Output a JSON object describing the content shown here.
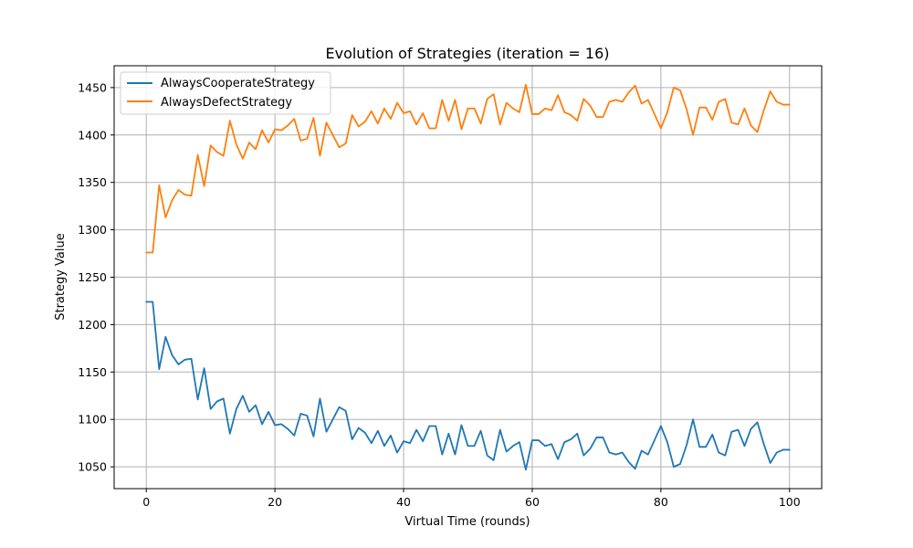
{
  "chart_data": {
    "type": "line",
    "title": "Evolution of Strategies (iteration = 16)",
    "xlabel": "Virtual Time (rounds)",
    "ylabel": "Strategy Value",
    "xlim": [
      -5,
      105
    ],
    "ylim": [
      1027,
      1473
    ],
    "xticks": [
      0,
      20,
      40,
      60,
      80,
      100
    ],
    "yticks": [
      1050,
      1100,
      1150,
      1200,
      1250,
      1300,
      1350,
      1400,
      1450
    ],
    "grid": true,
    "legend_position": "top-left",
    "x": [
      0,
      1,
      2,
      3,
      4,
      5,
      6,
      7,
      8,
      9,
      10,
      11,
      12,
      13,
      14,
      15,
      16,
      17,
      18,
      19,
      20,
      21,
      22,
      23,
      24,
      25,
      26,
      27,
      28,
      29,
      30,
      31,
      32,
      33,
      34,
      35,
      36,
      37,
      38,
      39,
      40,
      41,
      42,
      43,
      44,
      45,
      46,
      47,
      48,
      49,
      50,
      51,
      52,
      53,
      54,
      55,
      56,
      57,
      58,
      59,
      60,
      61,
      62,
      63,
      64,
      65,
      66,
      67,
      68,
      69,
      70,
      71,
      72,
      73,
      74,
      75,
      76,
      77,
      78,
      79,
      80,
      81,
      82,
      83,
      84,
      85,
      86,
      87,
      88,
      89,
      90,
      91,
      92,
      93,
      94,
      95,
      96,
      97,
      98,
      99,
      100
    ],
    "series": [
      {
        "name": "AlwaysCooperateStrategy",
        "color": "#1f77b4",
        "values": [
          1224,
          1224,
          1153,
          1187,
          1168,
          1158,
          1163,
          1164,
          1121,
          1154,
          1111,
          1119,
          1122,
          1085,
          1111,
          1125,
          1108,
          1115,
          1095,
          1108,
          1094,
          1095,
          1090,
          1083,
          1106,
          1104,
          1082,
          1122,
          1087,
          1100,
          1113,
          1109,
          1079,
          1091,
          1086,
          1075,
          1088,
          1072,
          1083,
          1065,
          1077,
          1075,
          1089,
          1077,
          1093,
          1093,
          1063,
          1085,
          1063,
          1094,
          1072,
          1072,
          1088,
          1062,
          1057,
          1089,
          1066,
          1072,
          1076,
          1047,
          1078,
          1078,
          1072,
          1074,
          1058,
          1076,
          1079,
          1085,
          1062,
          1069,
          1081,
          1081,
          1065,
          1063,
          1065,
          1055,
          1048,
          1067,
          1063,
          1078,
          1093,
          1076,
          1050,
          1053,
          1073,
          1100,
          1071,
          1071,
          1084,
          1065,
          1062,
          1087,
          1089,
          1072,
          1090,
          1097,
          1074,
          1054,
          1065,
          1068,
          1068
        ]
      },
      {
        "name": "AlwaysDefectStrategy",
        "color": "#ff7f0e",
        "values": [
          1276,
          1276,
          1347,
          1313,
          1331,
          1342,
          1337,
          1336,
          1379,
          1346,
          1389,
          1382,
          1378,
          1415,
          1390,
          1375,
          1392,
          1385,
          1405,
          1392,
          1406,
          1405,
          1410,
          1417,
          1394,
          1396,
          1418,
          1378,
          1413,
          1400,
          1387,
          1391,
          1421,
          1409,
          1414,
          1425,
          1412,
          1428,
          1417,
          1434,
          1423,
          1425,
          1411,
          1423,
          1407,
          1407,
          1437,
          1415,
          1437,
          1406,
          1428,
          1428,
          1412,
          1438,
          1443,
          1411,
          1434,
          1428,
          1424,
          1453,
          1422,
          1422,
          1428,
          1426,
          1442,
          1424,
          1421,
          1415,
          1438,
          1431,
          1419,
          1419,
          1435,
          1437,
          1435,
          1445,
          1452,
          1433,
          1437,
          1422,
          1407,
          1424,
          1450,
          1447,
          1427,
          1400,
          1429,
          1429,
          1416,
          1435,
          1438,
          1413,
          1411,
          1428,
          1410,
          1403,
          1426,
          1446,
          1435,
          1432,
          1432
        ]
      }
    ]
  }
}
